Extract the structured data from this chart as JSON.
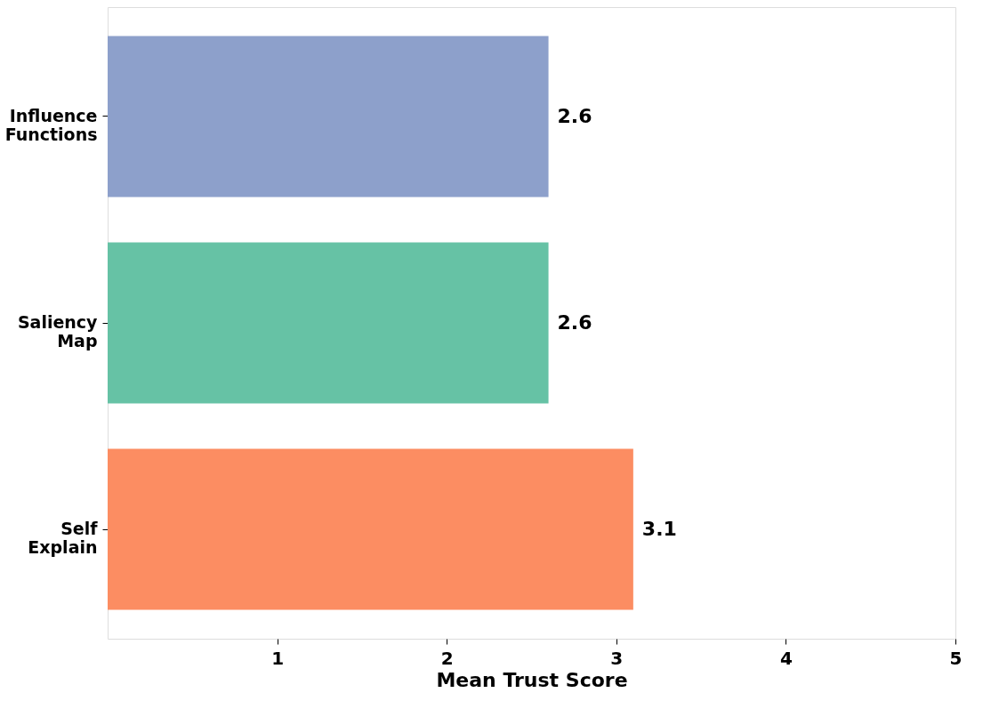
{
  "chart_data": {
    "type": "bar",
    "orientation": "horizontal",
    "xlabel": "Mean Trust Score",
    "categories": [
      "Influence Functions",
      "Saliency Map",
      "Self Explain"
    ],
    "values": [
      2.6,
      2.6,
      3.1
    ],
    "colors": [
      "#8da0cb",
      "#66c2a5",
      "#fc8d62"
    ],
    "xlim": [
      0,
      5
    ],
    "xticks": [
      1,
      2,
      3,
      4,
      5
    ],
    "data_labels": true
  }
}
